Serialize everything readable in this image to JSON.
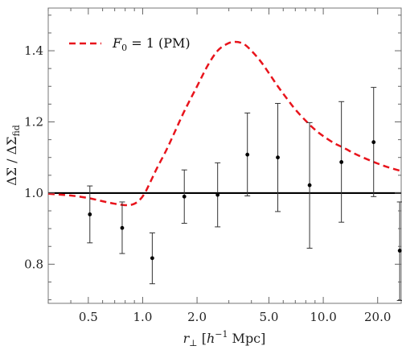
{
  "chart_data": {
    "type": "line",
    "x_scale": "log",
    "xlim": [
      0.3,
      27.0
    ],
    "ylim": [
      0.69,
      1.52
    ],
    "x_ticks": [
      0.5,
      1.0,
      2.0,
      5.0,
      10.0,
      20.0
    ],
    "x_tick_labels": [
      "0.5",
      "1.0",
      "2.0",
      "5.0",
      "10.0",
      "20.0"
    ],
    "y_ticks": [
      0.8,
      1.0,
      1.2,
      1.4
    ],
    "y_tick_labels": [
      "0.8",
      "1.0",
      "1.2",
      "1.4"
    ],
    "xlabel": {
      "pre": "r",
      "sub": "⊥",
      "bracket_open": " [",
      "h": "h",
      "sup": "−1",
      "unit": " Mpc]"
    },
    "ylabel": {
      "main": "ΔΣ / ΔΣ",
      "sub": "fid"
    },
    "grid": false,
    "legend_position": "top-left",
    "legend": {
      "F": "F",
      "sub": "0",
      "rest": " = 1 (PM)"
    },
    "reference_line": {
      "y": 1.0,
      "color": "#000000"
    },
    "series": [
      {
        "name": "F0 = 1 (PM)",
        "style": "dashed",
        "color": "#e8141c",
        "x": [
          0.3,
          0.4,
          0.5,
          0.6,
          0.7,
          0.8,
          0.88,
          0.95,
          1.02,
          1.1,
          1.2,
          1.35,
          1.5,
          1.7,
          2.0,
          2.3,
          2.6,
          2.9,
          3.2,
          3.6,
          4.0,
          4.5,
          5.0,
          5.6,
          6.3,
          7.0,
          8.0,
          9.0,
          10.0,
          11.5,
          13.0,
          15.0,
          17.5,
          20.0,
          23.0,
          27.0
        ],
        "y": [
          0.998,
          0.993,
          0.986,
          0.977,
          0.97,
          0.966,
          0.968,
          0.978,
          0.997,
          1.03,
          1.07,
          1.12,
          1.17,
          1.23,
          1.3,
          1.36,
          1.4,
          1.418,
          1.425,
          1.42,
          1.4,
          1.37,
          1.337,
          1.3,
          1.265,
          1.235,
          1.203,
          1.178,
          1.16,
          1.14,
          1.127,
          1.11,
          1.095,
          1.083,
          1.072,
          1.062
        ]
      },
      {
        "name": "measurements",
        "style": "points-with-errorbars",
        "color": "#000000",
        "points": [
          {
            "x": 0.51,
            "y": 0.94,
            "lo": 0.86,
            "hi": 1.02
          },
          {
            "x": 0.77,
            "y": 0.902,
            "lo": 0.83,
            "hi": 0.975
          },
          {
            "x": 1.13,
            "y": 0.817,
            "lo": 0.745,
            "hi": 0.888
          },
          {
            "x": 1.7,
            "y": 0.99,
            "lo": 0.915,
            "hi": 1.065
          },
          {
            "x": 2.6,
            "y": 0.995,
            "lo": 0.905,
            "hi": 1.085
          },
          {
            "x": 3.8,
            "y": 1.108,
            "lo": 0.992,
            "hi": 1.225
          },
          {
            "x": 5.6,
            "y": 1.1,
            "lo": 0.948,
            "hi": 1.252
          },
          {
            "x": 8.4,
            "y": 1.022,
            "lo": 0.845,
            "hi": 1.198
          },
          {
            "x": 12.6,
            "y": 1.087,
            "lo": 0.918,
            "hi": 1.257
          },
          {
            "x": 19.0,
            "y": 1.143,
            "lo": 0.99,
            "hi": 1.297
          },
          {
            "x": 26.5,
            "y": 0.838,
            "lo": 0.698,
            "hi": 0.975
          }
        ]
      }
    ]
  }
}
